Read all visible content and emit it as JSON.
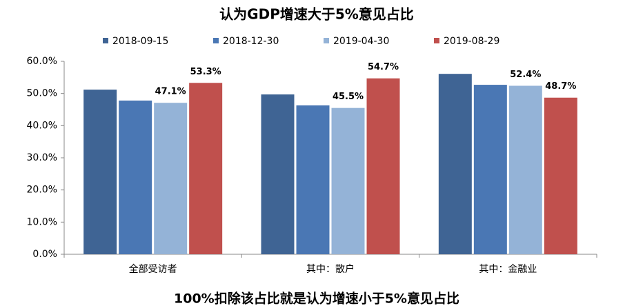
{
  "chart_data": {
    "type": "bar",
    "title": "认为GDP增速大于5%意见占比",
    "annotation": "100%扣除该占比就是认为增速小于5%意见占比",
    "categories": [
      "全部受访者",
      "其中：散户",
      "其中：金融业"
    ],
    "series": [
      {
        "name": "2018-09-15",
        "color": "#3f6494",
        "values": [
          51.2,
          49.7,
          56.1
        ]
      },
      {
        "name": "2018-12-30",
        "color": "#4a77b4",
        "values": [
          47.8,
          46.3,
          52.7
        ]
      },
      {
        "name": "2019-04-30",
        "color": "#94b3d7",
        "values": [
          47.1,
          45.5,
          52.4
        ],
        "value_labels": [
          "47.1%",
          "45.5%",
          "52.4%"
        ]
      },
      {
        "name": "2019-08-29",
        "color": "#c0504d",
        "values": [
          53.3,
          54.7,
          48.7
        ],
        "value_labels": [
          "53.3%",
          "54.7%",
          "48.7%"
        ]
      }
    ],
    "ylim": [
      0,
      60
    ],
    "yticks": [
      {
        "value": 0,
        "label": "0.0%"
      },
      {
        "value": 10,
        "label": "10.0%"
      },
      {
        "value": 20,
        "label": "20.0%"
      },
      {
        "value": 30,
        "label": "30.0%"
      },
      {
        "value": 40,
        "label": "40.0%"
      },
      {
        "value": 50,
        "label": "50.0%"
      },
      {
        "value": 60,
        "label": "60.0%"
      }
    ],
    "legend": "top"
  }
}
